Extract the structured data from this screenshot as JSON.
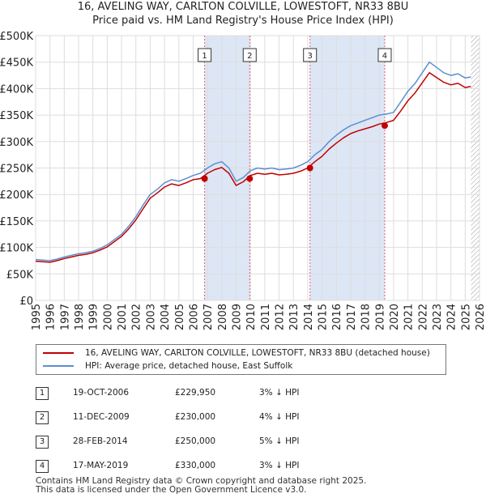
{
  "title": {
    "line1": "16, AVELING WAY, CARLTON COLVILLE, LOWESTOFT, NR33 8BU",
    "line2": "Price paid vs. HM Land Registry's House Price Index (HPI)"
  },
  "legend": {
    "property": "16, AVELING WAY, CARLTON COLVILLE, LOWESTOFT, NR33 8BU (detached house)",
    "hpi": "HPI: Average price, detached house, East Suffolk"
  },
  "transactions": [
    {
      "num": "1",
      "date": "19-OCT-2006",
      "price": "£229,950",
      "hpi": "3% ↓ HPI"
    },
    {
      "num": "2",
      "date": "11-DEC-2009",
      "price": "£230,000",
      "hpi": "4% ↓ HPI"
    },
    {
      "num": "3",
      "date": "28-FEB-2014",
      "price": "£250,000",
      "hpi": "5% ↓ HPI"
    },
    {
      "num": "4",
      "date": "17-MAY-2019",
      "price": "£330,000",
      "hpi": "3% ↓ HPI"
    }
  ],
  "footer": {
    "line1": "Contains HM Land Registry data © Crown copyright and database right 2025.",
    "line2": "This data is licensed under the Open Government Licence v3.0."
  },
  "colors": {
    "property_line": "#c00000",
    "hpi_line": "#5b8fd0",
    "shade": "#dde6f5",
    "marker_line": "#e06070"
  },
  "chart_data": {
    "type": "line",
    "title": "Price paid vs. HM Land Registry's House Price Index (HPI)",
    "xlabel": "",
    "ylabel": "",
    "xlim": [
      1995,
      2026
    ],
    "ylim": [
      0,
      500000
    ],
    "yticks": [
      {
        "value": 0,
        "label": "£0"
      },
      {
        "value": 50000,
        "label": "£50K"
      },
      {
        "value": 100000,
        "label": "£100K"
      },
      {
        "value": 150000,
        "label": "£150K"
      },
      {
        "value": 200000,
        "label": "£200K"
      },
      {
        "value": 250000,
        "label": "£250K"
      },
      {
        "value": 300000,
        "label": "£300K"
      },
      {
        "value": 350000,
        "label": "£350K"
      },
      {
        "value": 400000,
        "label": "£400K"
      },
      {
        "value": 450000,
        "label": "£450K"
      },
      {
        "value": 500000,
        "label": "£500K"
      }
    ],
    "xticks": [
      "1995",
      "1996",
      "1997",
      "1998",
      "1999",
      "2000",
      "2001",
      "2002",
      "2003",
      "2004",
      "2005",
      "2006",
      "2007",
      "2008",
      "2009",
      "2010",
      "2011",
      "2012",
      "2013",
      "2014",
      "2015",
      "2016",
      "2017",
      "2018",
      "2019",
      "2020",
      "2021",
      "2022",
      "2023",
      "2024",
      "2025",
      "2026"
    ],
    "grid": true,
    "shaded_periods": [
      [
        2006.8,
        2009.95
      ],
      [
        2014.16,
        2019.38
      ]
    ],
    "data_end": 2025.4,
    "sales": [
      {
        "label": "1",
        "x": 2006.8,
        "y": 229950
      },
      {
        "label": "2",
        "x": 2009.95,
        "y": 230000
      },
      {
        "label": "3",
        "x": 2014.16,
        "y": 250000
      },
      {
        "label": "4",
        "x": 2019.38,
        "y": 330000
      }
    ],
    "series": [
      {
        "name": "HPI: Average price, detached house, East Suffolk",
        "x": [
          1995,
          1995.5,
          1996,
          1996.5,
          1997,
          1997.5,
          1998,
          1998.5,
          1999,
          1999.5,
          2000,
          2000.5,
          2001,
          2001.5,
          2002,
          2002.5,
          2003,
          2003.5,
          2004,
          2004.5,
          2005,
          2005.5,
          2006,
          2006.5,
          2007,
          2007.5,
          2008,
          2008.5,
          2009,
          2009.5,
          2010,
          2010.5,
          2011,
          2011.5,
          2012,
          2012.5,
          2013,
          2013.5,
          2014,
          2014.5,
          2015,
          2015.5,
          2016,
          2016.5,
          2017,
          2017.5,
          2018,
          2018.5,
          2019,
          2019.5,
          2020,
          2020.5,
          2021,
          2021.5,
          2022,
          2022.5,
          2023,
          2023.5,
          2024,
          2024.5,
          2025,
          2025.4
        ],
        "values": [
          77000,
          76000,
          75000,
          78000,
          82000,
          85000,
          88000,
          90000,
          93000,
          98000,
          105000,
          115000,
          125000,
          140000,
          158000,
          180000,
          200000,
          210000,
          222000,
          228000,
          225000,
          230000,
          236000,
          240000,
          250000,
          258000,
          262000,
          250000,
          225000,
          232000,
          245000,
          250000,
          248000,
          250000,
          247000,
          248000,
          250000,
          255000,
          262000,
          275000,
          285000,
          300000,
          312000,
          322000,
          330000,
          335000,
          340000,
          345000,
          350000,
          352000,
          355000,
          375000,
          395000,
          410000,
          430000,
          450000,
          440000,
          430000,
          425000,
          428000,
          420000,
          422000
        ]
      },
      {
        "name": "16, AVELING WAY, CARLTON COLVILLE, LOWESTOFT, NR33 8BU (detached house)",
        "x": [
          1995,
          1995.5,
          1996,
          1996.5,
          1997,
          1997.5,
          1998,
          1998.5,
          1999,
          1999.5,
          2000,
          2000.5,
          2001,
          2001.5,
          2002,
          2002.5,
          2003,
          2003.5,
          2004,
          2004.5,
          2005,
          2005.5,
          2006,
          2006.5,
          2007,
          2007.5,
          2008,
          2008.5,
          2009,
          2009.5,
          2010,
          2010.5,
          2011,
          2011.5,
          2012,
          2012.5,
          2013,
          2013.5,
          2014,
          2014.5,
          2015,
          2015.5,
          2016,
          2016.5,
          2017,
          2017.5,
          2018,
          2018.5,
          2019,
          2019.5,
          2020,
          2020.5,
          2021,
          2021.5,
          2022,
          2022.5,
          2023,
          2023.5,
          2024,
          2024.5,
          2025,
          2025.4
        ],
        "values": [
          74000,
          73000,
          72000,
          75000,
          79000,
          82000,
          85000,
          87000,
          90000,
          95000,
          101000,
          111000,
          121000,
          135000,
          152000,
          173000,
          193000,
          203000,
          214000,
          220000,
          217000,
          222000,
          228000,
          230000,
          240000,
          247000,
          251000,
          240000,
          217000,
          224000,
          236000,
          240000,
          238000,
          240000,
          237000,
          238000,
          240000,
          244000,
          250000,
          262000,
          272000,
          286000,
          297000,
          307000,
          315000,
          320000,
          324000,
          328000,
          333000,
          336000,
          340000,
          358000,
          377000,
          392000,
          411000,
          430000,
          421000,
          412000,
          407000,
          410000,
          402000,
          404000
        ]
      }
    ]
  }
}
